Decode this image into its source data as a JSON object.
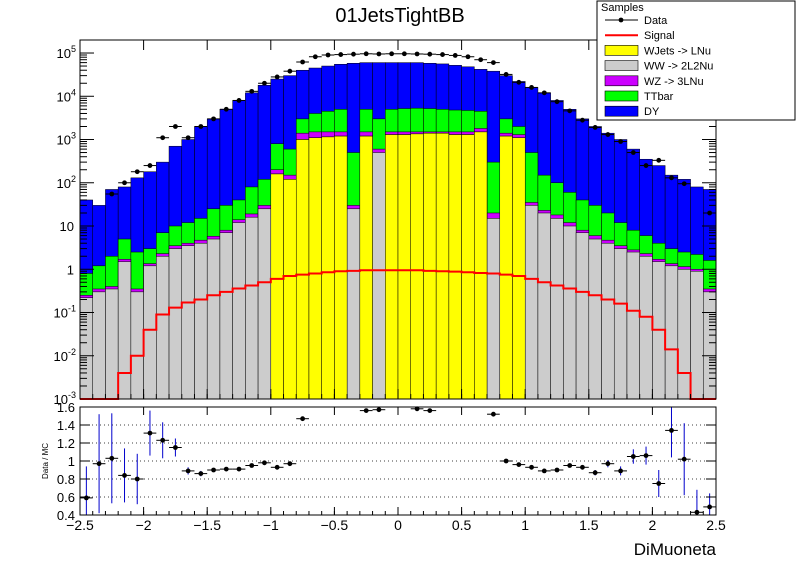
{
  "chart_data": [
    {
      "type": "bar",
      "stacked": true,
      "title": "01JetsTightBB",
      "xlabel": "",
      "ylabel": "",
      "log_y": true,
      "xlim": [
        -2.5,
        2.5
      ],
      "ylim": [
        0.001,
        200000
      ],
      "bin_width": 0.1,
      "x_ticks": [
        -2.5,
        -2,
        -1.5,
        -1,
        -0.5,
        0,
        0.5,
        1,
        1.5,
        2,
        2.5
      ],
      "x_tick_labels": [
        "−2.5",
        "−2",
        "−1.5",
        "−1",
        "−0.5",
        "0",
        "0.5",
        "1",
        "1.5",
        "2",
        "2.5"
      ],
      "y_ticks": [
        0.001,
        0.01,
        0.1,
        1,
        10,
        100,
        1000,
        10000,
        100000
      ],
      "legend_title": "Samples",
      "legend_position": "top-right",
      "series": [
        {
          "name": "Data",
          "kind": "points",
          "color": "#000000"
        },
        {
          "name": "Signal",
          "kind": "line",
          "color": "#ff0000"
        },
        {
          "name": "WJets -> LNu",
          "kind": "fill",
          "color": "#ffff00"
        },
        {
          "name": "WW -> 2L2Nu",
          "kind": "fill",
          "color": "#cccccc"
        },
        {
          "name": "WZ -> 3LNu",
          "kind": "fill",
          "color": "#cc00ff"
        },
        {
          "name": "TTbar",
          "kind": "fill",
          "color": "#00ff00"
        },
        {
          "name": "DY",
          "kind": "fill",
          "color": "#0000ff"
        }
      ],
      "x": [
        -2.45,
        -2.35,
        -2.25,
        -2.15,
        -2.05,
        -1.95,
        -1.85,
        -1.75,
        -1.65,
        -1.55,
        -1.45,
        -1.35,
        -1.25,
        -1.15,
        -1.05,
        -0.95,
        -0.85,
        -0.75,
        -0.65,
        -0.55,
        -0.45,
        -0.35,
        -0.25,
        -0.15,
        -0.05,
        0.05,
        0.15,
        0.25,
        0.35,
        0.45,
        0.55,
        0.65,
        0.75,
        0.85,
        0.95,
        1.05,
        1.15,
        1.25,
        1.35,
        1.45,
        1.55,
        1.65,
        1.75,
        1.85,
        1.95,
        2.05,
        2.15,
        2.25,
        2.35,
        2.45
      ],
      "stack_tops": {
        "WJets -> LNu": [
          0,
          0,
          0,
          0,
          0,
          0,
          0,
          0,
          0,
          0,
          0,
          0,
          0,
          0,
          0,
          160,
          120,
          1000,
          1100,
          1150,
          1200,
          0,
          1200,
          0,
          1300,
          1300,
          1350,
          1400,
          1400,
          1300,
          1300,
          1500,
          0,
          1200,
          1100,
          0,
          0,
          0,
          0,
          0,
          0,
          0,
          0,
          0,
          0,
          0,
          0,
          0,
          0,
          0
        ],
        "WW -> 2L2Nu": [
          0.22,
          0.3,
          0.35,
          1.5,
          0.3,
          1.2,
          2,
          3,
          3.5,
          4,
          5,
          7,
          12,
          16,
          25,
          160,
          120,
          1000,
          1100,
          1150,
          1200,
          25,
          1200,
          500,
          1300,
          1300,
          1350,
          1400,
          1400,
          1300,
          1300,
          1500,
          15,
          1200,
          1100,
          30,
          20,
          15,
          10,
          7,
          5,
          4,
          3,
          2.5,
          2,
          1.5,
          1.2,
          1,
          0.9,
          0.3
        ],
        "WZ -> 3LNu": [
          0.25,
          0.35,
          0.4,
          1.7,
          0.35,
          1.35,
          2.3,
          3.5,
          4,
          4.7,
          5.8,
          8,
          14,
          19,
          30,
          200,
          150,
          1400,
          1500,
          1500,
          1500,
          30,
          1500,
          600,
          1500,
          1500,
          1500,
          1500,
          1500,
          1500,
          1500,
          1800,
          20,
          1400,
          1300,
          35,
          23,
          18,
          12,
          8,
          6,
          4.7,
          3.5,
          2.8,
          2.3,
          1.7,
          1.35,
          1.15,
          1,
          0.35
        ],
        "TTbar": [
          0.8,
          1.2,
          2,
          5,
          2.5,
          3,
          7,
          10,
          12,
          15,
          25,
          30,
          40,
          80,
          120,
          800,
          600,
          3000,
          4000,
          4500,
          5000,
          500,
          5000,
          3000,
          5000,
          5200,
          5300,
          5200,
          5000,
          4800,
          4700,
          4500,
          300,
          3000,
          2000,
          500,
          150,
          100,
          60,
          40,
          30,
          20,
          12,
          8,
          6,
          4,
          3,
          2.5,
          2.2,
          1.6
        ],
        "DY": [
          40,
          30,
          70,
          80,
          130,
          180,
          300,
          700,
          1000,
          2000,
          3000,
          5000,
          8000,
          12000,
          18000,
          25000,
          30000,
          40000,
          45000,
          50000,
          55000,
          58000,
          60000,
          60000,
          60000,
          60000,
          60000,
          58000,
          56000,
          52000,
          48000,
          42000,
          38000,
          30000,
          22000,
          16000,
          12000,
          8000,
          5000,
          3000,
          2000,
          1400,
          1000,
          600,
          350,
          250,
          150,
          120,
          80,
          70
        ]
      },
      "signal": [
        0.001,
        0.001,
        0.001,
        0.004,
        0.01,
        0.04,
        0.09,
        0.13,
        0.17,
        0.2,
        0.25,
        0.3,
        0.36,
        0.42,
        0.5,
        0.6,
        0.7,
        0.75,
        0.8,
        0.85,
        0.9,
        0.92,
        0.95,
        0.95,
        0.95,
        0.95,
        0.95,
        0.92,
        0.9,
        0.88,
        0.85,
        0.82,
        0.8,
        0.75,
        0.7,
        0.6,
        0.5,
        0.42,
        0.36,
        0.3,
        0.25,
        0.2,
        0.16,
        0.11,
        0.08,
        0.04,
        0.014,
        0.004,
        0.001,
        0.001
      ],
      "data_y": [
        null,
        null,
        55,
        100,
        180,
        250,
        1100,
        2000,
        1100,
        2000,
        3000,
        5000,
        8000,
        13000,
        20000,
        28000,
        38000,
        62000,
        82000,
        90000,
        92000,
        94000,
        96000,
        95000,
        96000,
        96000,
        95000,
        94000,
        92000,
        88000,
        82000,
        70000,
        60000,
        32000,
        21000,
        16000,
        12000,
        7500,
        4600,
        2800,
        1900,
        1300,
        900,
        500,
        250,
        330,
        130,
        95,
        null,
        20
      ]
    },
    {
      "type": "scatter",
      "xlabel": "DiMuoneta",
      "ylabel": "Data / MC",
      "xlim": [
        -2.5,
        2.5
      ],
      "ylim": [
        0.4,
        1.6
      ],
      "x_ticks": [
        -2.5,
        -2,
        -1.5,
        -1,
        -0.5,
        0,
        0.5,
        1,
        1.5,
        2,
        2.5
      ],
      "x_tick_labels": [
        "−2.5",
        "−2",
        "−1.5",
        "−1",
        "−0.5",
        "0",
        "0.5",
        "1",
        "1.5",
        "2",
        "2.5"
      ],
      "y_ticks": [
        0.4,
        0.6,
        0.8,
        1,
        1.2,
        1.4,
        1.6
      ],
      "y_tick_labels": [
        "0.4",
        "0.6",
        "0.8",
        "1",
        "1.2",
        "1.4",
        "1.6"
      ],
      "grid": "horizontal dotted",
      "points": [
        {
          "x": -2.45,
          "y": 0.59,
          "err": 0.35
        },
        {
          "x": -2.35,
          "y": 0.97,
          "err": 0.55
        },
        {
          "x": -2.25,
          "y": 1.03,
          "err": 0.5
        },
        {
          "x": -2.15,
          "y": 0.84,
          "err": 0.3
        },
        {
          "x": -2.05,
          "y": 0.8,
          "err": 0.28
        },
        {
          "x": -1.95,
          "y": 1.31,
          "err": 0.25
        },
        {
          "x": -1.85,
          "y": 1.23,
          "err": 0.2
        },
        {
          "x": -1.75,
          "y": 1.15,
          "err": 0.1
        },
        {
          "x": -1.65,
          "y": 0.89,
          "err": 0.04
        },
        {
          "x": -1.55,
          "y": 0.86,
          "err": 0.03
        },
        {
          "x": -1.45,
          "y": 0.9,
          "err": 0.02
        },
        {
          "x": -1.35,
          "y": 0.91,
          "err": 0.02
        },
        {
          "x": -1.25,
          "y": 0.91,
          "err": 0.02
        },
        {
          "x": -1.15,
          "y": 0.95,
          "err": 0.015
        },
        {
          "x": -1.05,
          "y": 0.98,
          "err": 0.015
        },
        {
          "x": -0.95,
          "y": 0.93,
          "err": 0.015
        },
        {
          "x": -0.85,
          "y": 0.97,
          "err": 0.012
        },
        {
          "x": -0.75,
          "y": 1.47,
          "err": 0.01
        },
        {
          "x": -0.25,
          "y": 1.56,
          "err": 0.01
        },
        {
          "x": -0.15,
          "y": 1.57,
          "err": 0.01
        },
        {
          "x": 0.15,
          "y": 1.58,
          "err": 0.01
        },
        {
          "x": 0.25,
          "y": 1.56,
          "err": 0.01
        },
        {
          "x": 0.75,
          "y": 1.52,
          "err": 0.01
        },
        {
          "x": 0.85,
          "y": 1.0,
          "err": 0.012
        },
        {
          "x": 0.95,
          "y": 0.96,
          "err": 0.015
        },
        {
          "x": 1.05,
          "y": 0.93,
          "err": 0.015
        },
        {
          "x": 1.15,
          "y": 0.89,
          "err": 0.02
        },
        {
          "x": 1.25,
          "y": 0.9,
          "err": 0.02
        },
        {
          "x": 1.35,
          "y": 0.95,
          "err": 0.02
        },
        {
          "x": 1.45,
          "y": 0.93,
          "err": 0.02
        },
        {
          "x": 1.55,
          "y": 0.87,
          "err": 0.03
        },
        {
          "x": 1.65,
          "y": 0.97,
          "err": 0.04
        },
        {
          "x": 1.75,
          "y": 0.89,
          "err": 0.05
        },
        {
          "x": 1.85,
          "y": 1.05,
          "err": 0.08
        },
        {
          "x": 1.95,
          "y": 1.06,
          "err": 0.1
        },
        {
          "x": 2.05,
          "y": 0.75,
          "err": 0.15
        },
        {
          "x": 2.15,
          "y": 1.34,
          "err": 0.3
        },
        {
          "x": 2.25,
          "y": 1.02,
          "err": 0.4
        },
        {
          "x": 2.35,
          "y": 0.43,
          "err": 0.25
        },
        {
          "x": 2.45,
          "y": 0.49,
          "err": 0.15
        }
      ]
    }
  ]
}
